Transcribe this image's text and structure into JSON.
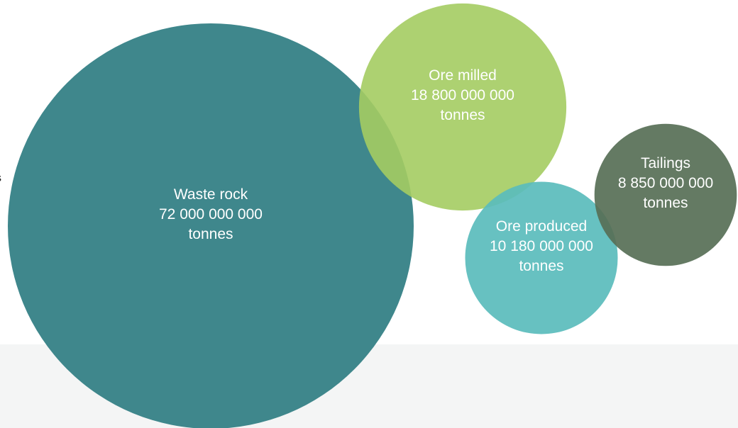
{
  "chart_data": {
    "type": "bubble",
    "title": "",
    "unit": "tonnes",
    "series": [
      {
        "id": "waste-rock",
        "name": "Waste rock",
        "value": 72000000000,
        "value_label": "72 000 000 000",
        "unit_label": "tonnes",
        "color": "#3f878c",
        "opacity": 1
      },
      {
        "id": "ore-milled",
        "name": "Ore milled",
        "value": 18800000000,
        "value_label": "18 800 000 000",
        "unit_label": "tonnes",
        "color": "#a4cc62",
        "opacity": 0.9
      },
      {
        "id": "ore-produced",
        "name": "Ore produced",
        "value": 10180000000,
        "value_label": "10 180 000 000",
        "unit_label": "tonnes",
        "color": "#5abcbc",
        "opacity": 0.92
      },
      {
        "id": "tailings",
        "name": "Tailings",
        "value": 8850000000,
        "value_label": "8 850 000 000",
        "unit_label": "tonnes",
        "color": "#576f56",
        "opacity": 0.92
      }
    ]
  },
  "stray_text": "s"
}
